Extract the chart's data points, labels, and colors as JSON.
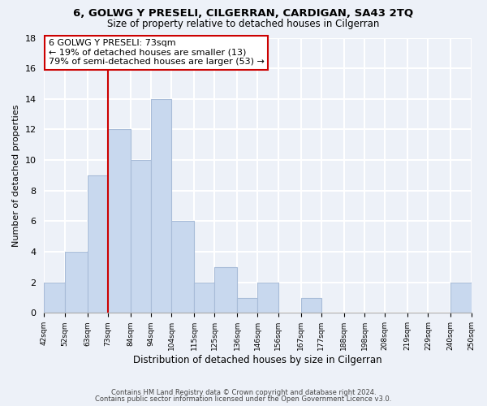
{
  "title": "6, GOLWG Y PRESELI, CILGERRAN, CARDIGAN, SA43 2TQ",
  "subtitle": "Size of property relative to detached houses in Cilgerran",
  "xlabel": "Distribution of detached houses by size in Cilgerran",
  "ylabel": "Number of detached properties",
  "bin_labels": [
    "42sqm",
    "52sqm",
    "63sqm",
    "73sqm",
    "84sqm",
    "94sqm",
    "104sqm",
    "115sqm",
    "125sqm",
    "136sqm",
    "146sqm",
    "156sqm",
    "167sqm",
    "177sqm",
    "188sqm",
    "198sqm",
    "208sqm",
    "219sqm",
    "229sqm",
    "240sqm",
    "250sqm"
  ],
  "bin_edges": [
    42,
    52,
    63,
    73,
    84,
    94,
    104,
    115,
    125,
    136,
    146,
    156,
    167,
    177,
    188,
    198,
    208,
    219,
    229,
    240,
    250
  ],
  "bar_heights": [
    2,
    4,
    9,
    12,
    10,
    14,
    6,
    2,
    3,
    1,
    2,
    0,
    1,
    0,
    0,
    0,
    0,
    0,
    0,
    2,
    0
  ],
  "bar_color": "#c8d8ee",
  "bar_edge_color": "#a8bcd8",
  "vline_x": 73,
  "vline_color": "#cc0000",
  "annotation_line1": "6 GOLWG Y PRESELI: 73sqm",
  "annotation_line2": "← 19% of detached houses are smaller (13)",
  "annotation_line3": "79% of semi-detached houses are larger (53) →",
  "annotation_box_color": "white",
  "annotation_box_edge": "#cc0000",
  "ylim": [
    0,
    18
  ],
  "yticks": [
    0,
    2,
    4,
    6,
    8,
    10,
    12,
    14,
    16,
    18
  ],
  "footer_line1": "Contains HM Land Registry data © Crown copyright and database right 2024.",
  "footer_line2": "Contains public sector information licensed under the Open Government Licence v3.0.",
  "background_color": "#edf1f8",
  "grid_color": "white",
  "title_fontsize": 9.5,
  "subtitle_fontsize": 8.5
}
